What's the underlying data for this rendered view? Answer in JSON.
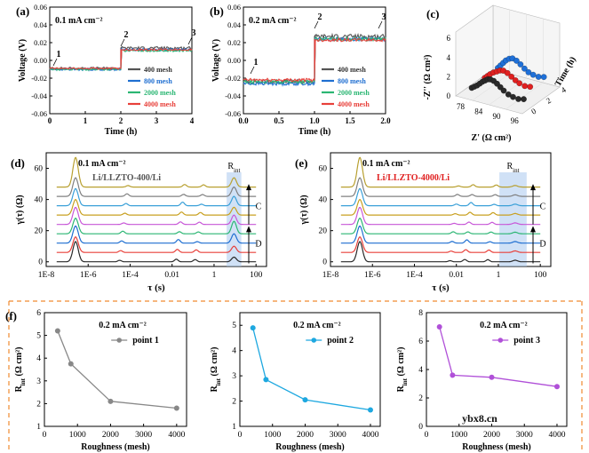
{
  "chart_data": [
    {
      "panel": "(a)",
      "type": "line",
      "title": "",
      "annotation": "0.1 mA cm⁻²",
      "xlabel": "Time (h)",
      "ylabel": "Voltage (V)",
      "xlim": [
        0,
        4
      ],
      "ylim": [
        -0.06,
        0.06
      ],
      "xticks": [
        "0",
        "1",
        "2",
        "3",
        "4"
      ],
      "yticks": [
        "-0.06",
        "-0.04",
        "-0.02",
        "0.00",
        "0.02",
        "0.04",
        "0.06"
      ],
      "points": [
        {
          "label": "1",
          "x": 0.1,
          "y": -0.006
        },
        {
          "label": "2",
          "x": 2.0,
          "y": 0.016
        },
        {
          "label": "3",
          "x": 3.9,
          "y": 0.018
        }
      ],
      "switch_x": 2.0,
      "series": [
        {
          "name": "400 mesh",
          "color": "#555555",
          "before": -0.009,
          "after": 0.014,
          "noise": 0.0015
        },
        {
          "name": "800 mesh",
          "color": "#1f6fd1",
          "before": -0.01,
          "after": 0.012,
          "noise": 0.0014
        },
        {
          "name": "2000 mesh",
          "color": "#2bb673",
          "before": -0.01,
          "after": 0.011,
          "noise": 0.0012
        },
        {
          "name": "4000 mesh",
          "color": "#e8403a",
          "before": -0.009,
          "after": 0.012,
          "noise": 0.001
        }
      ]
    },
    {
      "panel": "(b)",
      "type": "line",
      "title": "",
      "annotation": "0.2 mA cm⁻²",
      "xlabel": "Time (h)",
      "ylabel": "Voltage (V)",
      "xlim": [
        0,
        2
      ],
      "ylim": [
        -0.06,
        0.06
      ],
      "xticks": [
        "0.0",
        "0.5",
        "1.0",
        "1.5",
        "2.0"
      ],
      "yticks": [
        "-0.06",
        "-0.04",
        "-0.02",
        "0.00",
        "0.02",
        "0.04",
        "0.06"
      ],
      "points": [
        {
          "label": "1",
          "x": 0.1,
          "y": -0.015
        },
        {
          "label": "2",
          "x": 1.0,
          "y": 0.036
        },
        {
          "label": "3",
          "x": 1.9,
          "y": 0.036
        }
      ],
      "switch_x": 1.0,
      "series": [
        {
          "name": "400 mesh",
          "color": "#555555",
          "before": -0.024,
          "after": 0.027,
          "noise": 0.0025
        },
        {
          "name": "800 mesh",
          "color": "#1f6fd1",
          "before": -0.026,
          "after": 0.024,
          "noise": 0.002
        },
        {
          "name": "2000 mesh",
          "color": "#2bb673",
          "before": -0.024,
          "after": 0.024,
          "noise": 0.002
        },
        {
          "name": "4000 mesh",
          "color": "#e8403a",
          "before": -0.022,
          "after": 0.023,
          "noise": 0.0018
        }
      ]
    },
    {
      "panel": "(c)",
      "type": "scatter",
      "title": "",
      "xlabel": "Z' (Ω cm²)",
      "ylabel": "-Z'' (Ω cm²)",
      "zlabel": "Time (h)",
      "xticks": [
        "78",
        "84",
        "90",
        "96"
      ],
      "yticks": [
        "0",
        "2",
        "4",
        "6"
      ],
      "zticks": [
        "0",
        "2",
        "4"
      ],
      "series": [
        {
          "name": "black",
          "color": "#2a2a2a",
          "values": [
            [
              0.1,
              0.05,
              0.25
            ],
            [
              0.14,
              0.08,
              0.25
            ],
            [
              0.18,
              0.11,
              0.25
            ],
            [
              0.22,
              0.15,
              0.25
            ],
            [
              0.26,
              0.19,
              0.25
            ],
            [
              0.3,
              0.22,
              0.25
            ],
            [
              0.34,
              0.25,
              0.25
            ],
            [
              0.38,
              0.26,
              0.25
            ],
            [
              0.43,
              0.25,
              0.25
            ],
            [
              0.48,
              0.22,
              0.25
            ],
            [
              0.53,
              0.18,
              0.25
            ],
            [
              0.58,
              0.14,
              0.25
            ],
            [
              0.65,
              0.1,
              0.25
            ],
            [
              0.72,
              0.08,
              0.25
            ],
            [
              0.8,
              0.07,
              0.25
            ],
            [
              0.88,
              0.09,
              0.25
            ]
          ]
        },
        {
          "name": "red",
          "color": "#e02020",
          "values": [
            [
              0.1,
              0.06,
              0.6
            ],
            [
              0.14,
              0.1,
              0.6
            ],
            [
              0.18,
              0.14,
              0.6
            ],
            [
              0.23,
              0.18,
              0.6
            ],
            [
              0.28,
              0.21,
              0.6
            ],
            [
              0.33,
              0.24,
              0.6
            ],
            [
              0.38,
              0.25,
              0.6
            ],
            [
              0.44,
              0.23,
              0.6
            ],
            [
              0.5,
              0.19,
              0.6
            ],
            [
              0.56,
              0.15,
              0.6
            ],
            [
              0.62,
              0.12,
              0.6
            ],
            [
              0.7,
              0.1,
              0.6
            ],
            [
              0.78,
              0.11,
              0.6
            ]
          ]
        },
        {
          "name": "blue",
          "color": "#1f70d8",
          "values": [
            [
              0.1,
              0.07,
              0.95
            ],
            [
              0.14,
              0.12,
              0.95
            ],
            [
              0.18,
              0.17,
              0.95
            ],
            [
              0.22,
              0.22,
              0.95
            ],
            [
              0.27,
              0.26,
              0.95
            ],
            [
              0.32,
              0.28,
              0.95
            ],
            [
              0.38,
              0.26,
              0.95
            ],
            [
              0.44,
              0.22,
              0.95
            ],
            [
              0.5,
              0.17,
              0.95
            ],
            [
              0.56,
              0.13,
              0.95
            ],
            [
              0.63,
              0.11,
              0.95
            ],
            [
              0.71,
              0.1,
              0.95
            ],
            [
              0.79,
              0.12,
              0.95
            ]
          ]
        }
      ]
    },
    {
      "panel": "(d)",
      "type": "line",
      "annotation": "0.1 mA cm⁻²",
      "sample": "Li/LLZTO-400/Li",
      "rint_label": "R",
      "rint_sub": "int",
      "xlabel": "τ (s)",
      "ylabel": "γ(τ) (Ω)",
      "xlim_log10": [
        -8,
        2.5
      ],
      "ylim": [
        -3,
        70
      ],
      "xticks": [
        "1E-8",
        "1E-6",
        "1E-4",
        "0.01",
        "1",
        "100"
      ],
      "yticks": [
        "0",
        "20",
        "40",
        "60"
      ],
      "band_log10": [
        0.6,
        1.3
      ],
      "arrow_labels": [
        "C",
        "D"
      ],
      "offsets": [
        0,
        6,
        12,
        18,
        24,
        30,
        36,
        42,
        48
      ],
      "colors": [
        "#2a2a2a",
        "#e8403a",
        "#1f6fd1",
        "#2bb673",
        "#c858d8",
        "#c8a020",
        "#3aa0d8",
        "#808080",
        "#b8a030"
      ],
      "main_peak": {
        "log_tau": -6.6,
        "heights": [
          13,
          10,
          11,
          10,
          11,
          10,
          11,
          12,
          19
        ]
      },
      "small_peaks": [
        {
          "log_tau": -4.5,
          "h": 1.6
        },
        {
          "log_tau": -1.8,
          "h": 2.2
        },
        {
          "log_tau": -0.9,
          "h": 1.6
        }
      ],
      "rint_peak": {
        "log_tau": 0.95,
        "heights": [
          3,
          4,
          6,
          8,
          6,
          5,
          6,
          6,
          6
        ]
      }
    },
    {
      "panel": "(e)",
      "type": "line",
      "annotation": "0.1 mA cm⁻²",
      "sample": "Li/LLZTO-4000/Li",
      "rint_label": "R",
      "rint_sub": "int",
      "xlabel": "τ (s)",
      "ylabel": "γ(τ) (Ω)",
      "xlim_log10": [
        -8,
        2.5
      ],
      "ylim": [
        -3,
        70
      ],
      "xticks": [
        "1E-8",
        "1E-6",
        "1E-4",
        "0.01",
        "1",
        "100"
      ],
      "yticks": [
        "0",
        "20",
        "40",
        "60"
      ],
      "band_log10": [
        0.05,
        1.35
      ],
      "arrow_labels": [
        "C",
        "D"
      ],
      "offsets": [
        0,
        6,
        12,
        18,
        24,
        30,
        36,
        42,
        48
      ],
      "colors": [
        "#2a2a2a",
        "#e8403a",
        "#1f6fd1",
        "#2bb673",
        "#c858d8",
        "#c8a020",
        "#3aa0d8",
        "#808080",
        "#b8a030"
      ],
      "main_peak": {
        "log_tau": -6.6,
        "heights": [
          13,
          10,
          11,
          10,
          11,
          10,
          11,
          12,
          19
        ]
      },
      "small_peaks": [
        {
          "log_tau": -2.3,
          "h": 1.2
        },
        {
          "log_tau": -1.6,
          "h": 2.0
        },
        {
          "log_tau": -0.5,
          "h": 1.5
        }
      ],
      "rint_peak": {
        "log_tau": 0.8,
        "heights": [
          1,
          1,
          1,
          1,
          1,
          1,
          1,
          1,
          1
        ]
      }
    },
    {
      "panel": "(f)",
      "type": "line",
      "subplot": "f1",
      "annotation": "0.2 mA cm⁻²",
      "legend": "point 1",
      "xlabel": "Roughness (mesh)",
      "ylabel": "R",
      "ylabel_sub": "int",
      "ylabel_unit": " (Ω cm²)",
      "xlim": [
        0,
        4300
      ],
      "ylim": [
        1,
        6
      ],
      "xticks": [
        "0",
        "1000",
        "2000",
        "3000",
        "4000"
      ],
      "yticks": [
        "1",
        "2",
        "3",
        "4",
        "5",
        "6"
      ],
      "color": "#888888",
      "x": [
        400,
        800,
        2000,
        4000
      ],
      "y": [
        5.2,
        3.75,
        2.1,
        1.8
      ]
    },
    {
      "panel": "",
      "type": "line",
      "subplot": "f2",
      "annotation": "0.2 mA cm⁻²",
      "legend": "point 2",
      "xlabel": "Roughness (mesh)",
      "ylabel": "R",
      "ylabel_sub": "int",
      "ylabel_unit": " (Ω cm²)",
      "xlim": [
        0,
        4300
      ],
      "ylim": [
        1,
        5.5
      ],
      "xticks": [
        "0",
        "1000",
        "2000",
        "3000",
        "4000"
      ],
      "yticks": [
        "1",
        "2",
        "3",
        "4",
        "5"
      ],
      "color": "#1ea8e0",
      "x": [
        400,
        800,
        2000,
        4000
      ],
      "y": [
        4.9,
        2.85,
        2.05,
        1.65
      ]
    },
    {
      "panel": "",
      "type": "line",
      "subplot": "f3",
      "annotation": "0.2 mA cm⁻²",
      "legend": "point 3",
      "xlabel": "Roughness (mesh)",
      "ylabel": "R",
      "ylabel_sub": "int",
      "ylabel_unit": " (Ω cm²)",
      "xlim": [
        0,
        4300
      ],
      "ylim": [
        0,
        8
      ],
      "xticks": [
        "0",
        "1000",
        "2000",
        "3000",
        "4000"
      ],
      "yticks": [
        "0",
        "2",
        "4",
        "6",
        "8"
      ],
      "color": "#b050d8",
      "x": [
        400,
        800,
        2000,
        4000
      ],
      "y": [
        7.0,
        3.6,
        3.45,
        2.8
      ]
    }
  ],
  "watermark": "ybx8.cn"
}
